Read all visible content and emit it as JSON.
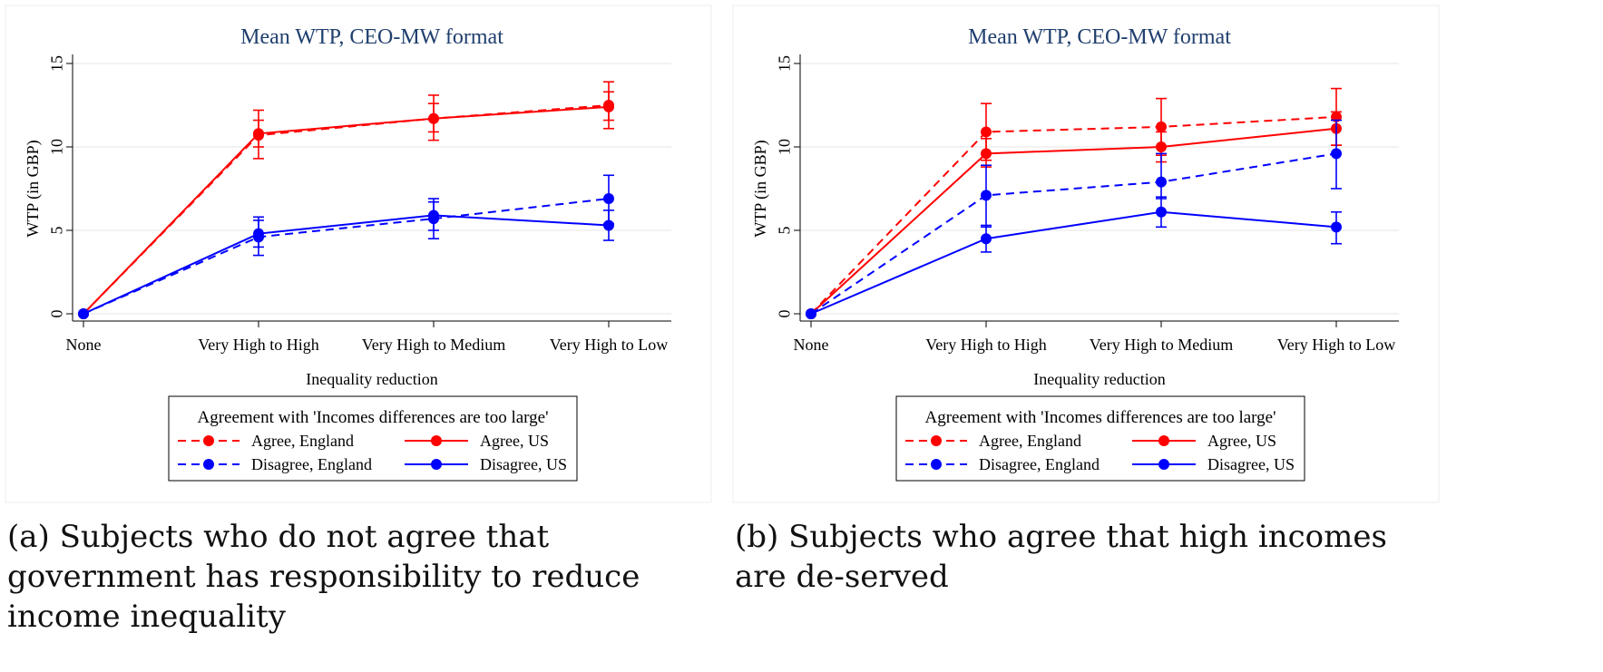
{
  "chart_data": [
    {
      "type": "line",
      "title": "Mean WTP, CEO-MW format",
      "xlabel": "Inequality reduction",
      "ylabel": "WTP (in GBP)",
      "categories": [
        "None",
        "Very High to High",
        "Very High to Medium",
        "Very High to Low"
      ],
      "yticks": [
        "0",
        "5",
        "10",
        "15"
      ],
      "ylim": [
        0,
        15
      ],
      "grid": true,
      "legend_title": "Agreement with 'Incomes differences are too large'",
      "legend_position": "bottom",
      "series": [
        {
          "name": "Agree, England",
          "color": "#ff0000",
          "dash": "dashed",
          "values": [
            0,
            10.7,
            11.7,
            12.5
          ],
          "ci_low": [
            0,
            9.3,
            10.4,
            11.1
          ],
          "ci_high": [
            0,
            12.2,
            13.1,
            13.9
          ]
        },
        {
          "name": "Agree, US",
          "color": "#ff0000",
          "dash": "solid",
          "values": [
            0,
            10.8,
            11.7,
            12.4
          ],
          "ci_low": [
            0,
            10.0,
            10.9,
            11.6
          ],
          "ci_high": [
            0,
            11.6,
            12.6,
            13.3
          ]
        },
        {
          "name": "Disagree, England",
          "color": "#0000ff",
          "dash": "dashed",
          "values": [
            0,
            4.6,
            5.7,
            6.9
          ],
          "ci_low": [
            0,
            3.5,
            4.5,
            5.4
          ],
          "ci_high": [
            0,
            5.8,
            6.9,
            8.3
          ]
        },
        {
          "name": "Disagree, US",
          "color": "#0000ff",
          "dash": "solid",
          "values": [
            0,
            4.8,
            5.9,
            5.3
          ],
          "ci_low": [
            0,
            4.0,
            5.0,
            4.4
          ],
          "ci_high": [
            0,
            5.6,
            6.7,
            6.2
          ]
        }
      ]
    },
    {
      "type": "line",
      "title": "Mean WTP, CEO-MW format",
      "xlabel": "Inequality reduction",
      "ylabel": "WTP (in GBP)",
      "categories": [
        "None",
        "Very High to High",
        "Very High to Medium",
        "Very High to Low"
      ],
      "yticks": [
        "0",
        "5",
        "10",
        "15"
      ],
      "ylim": [
        0,
        15
      ],
      "grid": true,
      "legend_title": "Agreement with 'Incomes differences are too large'",
      "legend_position": "bottom",
      "series": [
        {
          "name": "Agree, England",
          "color": "#ff0000",
          "dash": "dashed",
          "values": [
            0,
            10.9,
            11.2,
            11.8
          ],
          "ci_low": [
            0,
            9.2,
            9.5,
            10.1
          ],
          "ci_high": [
            0,
            12.6,
            12.9,
            13.5
          ]
        },
        {
          "name": "Agree, US",
          "color": "#ff0000",
          "dash": "solid",
          "values": [
            0,
            9.6,
            10.0,
            11.1
          ],
          "ci_low": [
            0,
            8.8,
            9.1,
            10.1
          ],
          "ci_high": [
            0,
            10.5,
            10.9,
            12.1
          ]
        },
        {
          "name": "Disagree, England",
          "color": "#0000ff",
          "dash": "dashed",
          "values": [
            0,
            7.1,
            7.9,
            9.6
          ],
          "ci_low": [
            0,
            5.2,
            6.9,
            7.5
          ],
          "ci_high": [
            0,
            8.9,
            9.6,
            11.6
          ]
        },
        {
          "name": "Disagree, US",
          "color": "#0000ff",
          "dash": "solid",
          "values": [
            0,
            4.5,
            6.1,
            5.2
          ],
          "ci_low": [
            0,
            3.7,
            5.2,
            4.2
          ],
          "ci_high": [
            0,
            5.3,
            7.0,
            6.1
          ]
        }
      ]
    }
  ],
  "captions": [
    "(a) Subjects who do not agree that government has responsibility to reduce income inequality",
    "(b) Subjects who agree that high incomes are de-served"
  ]
}
